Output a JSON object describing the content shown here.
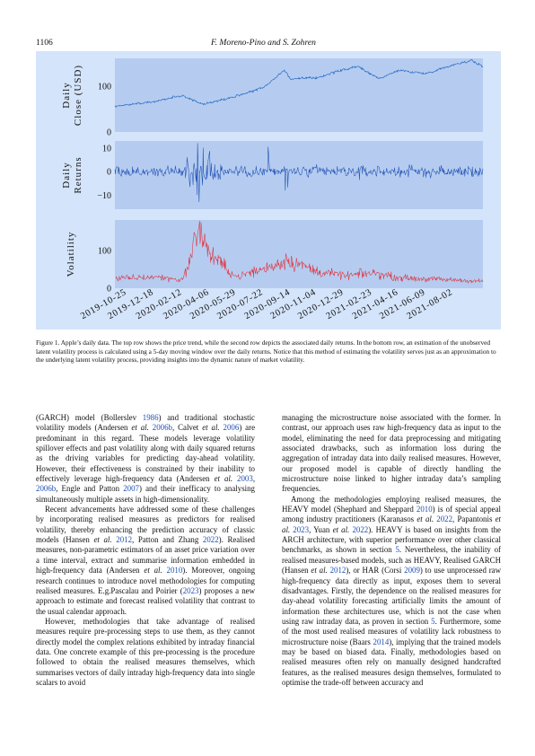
{
  "header": {
    "page_number": "1106",
    "authors": "F. Moreno-Pino and S. Zohren"
  },
  "figure": {
    "colors": {
      "background": "#d4e4fa",
      "panel": "#b5ccf0",
      "price": "#2a6cc4",
      "returns": "#1f4fb4",
      "volatility": "#e0313b"
    },
    "panels": [
      {
        "ylabel_line1": "Daily",
        "ylabel_line2": "Close (USD)",
        "ticks": [
          "0",
          "100"
        ]
      },
      {
        "ylabel_line1": "Daily",
        "ylabel_line2": "Returns",
        "ticks": [
          "10",
          "0",
          "−10"
        ]
      },
      {
        "ylabel_line1": "Volatility",
        "ylabel_line2": "",
        "ticks": [
          "100",
          "0"
        ]
      }
    ],
    "x_ticks": [
      "2019-10-25",
      "2019-12-18",
      "2020-02-12",
      "2020-04-06",
      "2020-05-29",
      "2020-07-22",
      "2020-09-14",
      "2020-11-04",
      "2020-12-29",
      "2021-02-23",
      "2021-04-16",
      "2021-06-09",
      "2021-08-02"
    ]
  },
  "chart_data": [
    {
      "type": "line",
      "ylabel": "Daily Close (USD)",
      "ylim": [
        0,
        160
      ],
      "x": [
        "2019-10-01",
        "2019-10-25",
        "2019-12-18",
        "2020-02-12",
        "2020-03-23",
        "2020-04-06",
        "2020-05-29",
        "2020-07-22",
        "2020-09-01",
        "2020-09-14",
        "2020-11-04",
        "2020-12-29",
        "2021-01-26",
        "2021-02-23",
        "2021-03-08",
        "2021-04-16",
        "2021-06-09",
        "2021-08-02",
        "2021-09-07",
        "2021-09-30"
      ],
      "series": [
        {
          "values": [
            56,
            59,
            66,
            79,
            60,
            64,
            78,
            97,
            134,
            115,
            118,
            136,
            142,
            124,
            116,
            134,
            127,
            146,
            156,
            142
          ]
        }
      ]
    },
    {
      "type": "line",
      "ylabel": "Daily Returns",
      "ylim": [
        -16,
        13
      ],
      "x": [
        "2019-10-01",
        "2019-12-18",
        "2020-02-12",
        "2020-02-27",
        "2020-03-12",
        "2020-03-13",
        "2020-03-16",
        "2020-03-24",
        "2020-04-06",
        "2020-05-29",
        "2020-07-31",
        "2020-09-03",
        "2020-09-08",
        "2020-11-04",
        "2021-01-28",
        "2021-04-16",
        "2021-08-02",
        "2021-09-30"
      ],
      "series": [
        {
          "values": [
            0.9,
            1.5,
            -1.5,
            -6.5,
            -9.9,
            12.0,
            -12.9,
            10.1,
            8.7,
            2.0,
            10.5,
            -8.0,
            -6.7,
            3.0,
            -3.5,
            2.0,
            -1.8,
            1.2
          ]
        }
      ]
    },
    {
      "type": "line",
      "ylabel": "Volatility",
      "ylim": [
        0,
        180
      ],
      "x": [
        "2019-10-01",
        "2019-12-18",
        "2020-02-12",
        "2020-02-27",
        "2020-03-16",
        "2020-03-24",
        "2020-04-06",
        "2020-05-29",
        "2020-07-31",
        "2020-09-08",
        "2020-11-04",
        "2020-12-29",
        "2021-02-23",
        "2021-04-16",
        "2021-06-09",
        "2021-08-02",
        "2021-09-30"
      ],
      "series": [
        {
          "values": [
            25,
            30,
            22,
            75,
            165,
            125,
            90,
            30,
            55,
            75,
            45,
            32,
            40,
            28,
            24,
            22,
            18
          ]
        }
      ]
    }
  ],
  "caption": {
    "label": "Figure 1.",
    "text": "Apple’s daily data. The top row shows the price trend, while the second row depicts the associated daily returns. In the bottom row, an estimation of the unobserved latent volatility process is calculated using a 5-day moving window over the daily returns. Notice that this method of estimating the volatility serves just as an approximation to the underlying latent volatility process, providing insights into the dynamic nature of market volatility."
  },
  "body": {
    "left_p1": {
      "t1": "(GARCH) model (Bollerslev ",
      "c1": "1986",
      "t2": ") and traditional stochastic volatility models (Andersen ",
      "etal1": "et al.",
      "c2": " 2006b",
      "t3": ", Calvet ",
      "etal2": "et al.",
      "c3": " 2006",
      "t4": ") are predominant in this regard. These models leverage volatility spillover effects and past volatility along with daily squared returns as the driving variables for predicting day-ahead volatility. However, their effectiveness is constrained by their inability to effectively leverage high-frequency data (Andersen ",
      "etal3": "et al.",
      "c4": " 2003",
      "t5": ", ",
      "c5": "2006b",
      "t6": ", Engle and Patton ",
      "c6": "2007",
      "t7": ") and their inefficacy to analysing simultaneously multiple assets in high-dimensionality."
    },
    "left_p2": {
      "t1": "Recent advancements have addressed some of these challenges by incorporating realised measures as predictors for realised volatility, thereby enhancing the prediction accuracy of classic models (Hansen ",
      "etal1": "et al.",
      "c1": " 2012",
      "t2": ", Patton and Zhang ",
      "c2": "2022",
      "t3": "). Realised measures, non-parametric estimators of an asset price variation over a time interval, extract and summarise information embedded in high-frequency data (Andersen ",
      "etal2": "et al.",
      "c3": " 2010",
      "t4": "). Moreover, ongoing research continues to introduce novel methodologies for computing realised measures. E.g.Pascalau and Poirier (",
      "c4": "2023",
      "t5": ") proposes a new approach to estimate and forecast realised volatility that contrast to the usual calendar approach."
    },
    "left_p3": "However, methodologies that take advantage of realised measures require pre-processing steps to use them, as they cannot directly model the complex relations exhibited by intraday financial data. One concrete example of this pre-processing is the procedure followed to obtain the realised measures themselves, which summarises vectors of daily intraday high-frequency data into single scalars to avoid",
    "right_p1": "managing the microstructure noise associated with the former. In contrast, our approach uses raw high-frequency data as input to the model, eliminating the need for data preprocessing and mitigating associated drawbacks, such as information loss during the aggregation of intraday data into daily realised measures. However, our proposed model is capable of directly handling the microstructure noise linked to higher intraday data’s sampling frequencies.",
    "right_p2": {
      "t1": "Among the methodologies employing realised measures, the HEAVY model (Shephard and Sheppard ",
      "c1": "2010",
      "t2": ") is of special appeal among industry practitioners (Karanasos ",
      "etal1": "et al.",
      "c2": " 2022",
      "t3": ", Papantonis ",
      "etal2": "et al.",
      "c3": " 2023",
      "t4": ", Yuan ",
      "etal3": "et al.",
      "c4": " 2022",
      "t5": "). HEAVY is based on insights from the ARCH architecture, with superior performance over other classical benchmarks, as shown in section ",
      "c5": "5",
      "t6": ". Nevertheless, the inability of realised measures-based models, such as HEAVY, Realised GARCH (Hansen ",
      "etal4": "et al.",
      "c6": " 2012",
      "t7": "), or HAR (Corsi ",
      "c7": "2009",
      "t8": ") to use unprocessed raw high-frequency data directly as input, exposes them to several disadvantages. Firstly, the dependence on the realised measures for day-ahead volatility forecasting artificially limits the amount of information these architectures use, which is not the case when using raw intraday data, as proven in section ",
      "c8": "5",
      "t9": ". Furthermore, some of the most used realised measures of volatility lack robustness to microstructure noise (Baars ",
      "c9": "2014",
      "t10": "), implying that the trained models may be based on biased data. Finally, methodologies based on realised measures often rely on manually designed handcrafted features, as the realised measures design themselves, formulated to optimise the trade-off between accuracy and"
    }
  }
}
